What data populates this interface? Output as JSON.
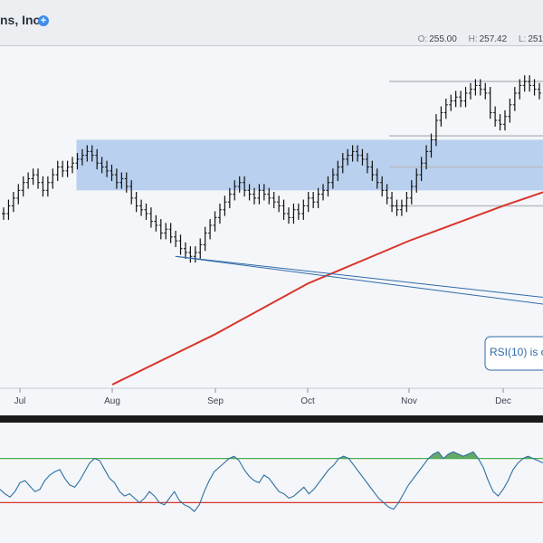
{
  "header": {
    "title": "ns, Inc.",
    "add_icon": "plus-circle-icon",
    "ohlc": {
      "o_label": "O:",
      "o_value": "255.00",
      "h_label": "H:",
      "h_value": "257.42",
      "l_label": "L:",
      "l_value": "251"
    }
  },
  "annotation": {
    "text": "RSI(10) is o"
  },
  "colors": {
    "bars": "#111111",
    "ma": "#d9342b",
    "zone": "#b9d0ee",
    "rsi_line": "#2f6f9f",
    "rsi_fill": "#4c9a50",
    "upper": "#4caf50",
    "lower": "#d9342b",
    "trend": "#2f6aa8"
  },
  "chart_data": [
    {
      "type": "ohlc",
      "x_ticks": [
        "Jul",
        "Aug",
        "Sep",
        "Oct",
        "Nov",
        "Dec"
      ],
      "ylim": [
        180,
        265
      ],
      "grid": false,
      "zone": {
        "from": "Jul 20",
        "to": "Dec 31",
        "low": 230,
        "high": 243
      },
      "levels": [
        258,
        244,
        236,
        226
      ],
      "ma_series": {
        "x": [
          "Aug 1",
          "Sep 1",
          "Oct 1",
          "Nov 1",
          "Dec 1",
          "Dec 31"
        ],
        "values": [
          180,
          193,
          206,
          217,
          226,
          234
        ]
      },
      "trendlines": [
        {
          "from": [
            "Aug 20",
            213
          ],
          "to": [
            "Dec 31",
            199
          ]
        },
        {
          "from": [
            "Aug 20",
            213
          ],
          "to": [
            "Dec 31",
            201
          ]
        }
      ],
      "closes": [
        224,
        226,
        228,
        230,
        232,
        233,
        234,
        232,
        230,
        232,
        234,
        236,
        235,
        236,
        237,
        238,
        239,
        240,
        239,
        237,
        236,
        235,
        234,
        232,
        233,
        231,
        228,
        226,
        225,
        224,
        222,
        221,
        219,
        220,
        218,
        217,
        215,
        214,
        213,
        214,
        216,
        219,
        221,
        223,
        225,
        227,
        229,
        231,
        232,
        230,
        229,
        228,
        230,
        229,
        228,
        227,
        226,
        224,
        223,
        225,
        224,
        226,
        228,
        227,
        229,
        230,
        232,
        234,
        236,
        238,
        239,
        240,
        239,
        238,
        236,
        234,
        232,
        230,
        228,
        226,
        225,
        226,
        228,
        231,
        234,
        237,
        240,
        243,
        248,
        250,
        252,
        253,
        254,
        253,
        255,
        256,
        257,
        256,
        255,
        250,
        248,
        247,
        249,
        252,
        255,
        257,
        258,
        257,
        256,
        255
      ]
    },
    {
      "type": "line",
      "name": "",
      "ylim": [
        0,
        100
      ],
      "levels": [
        70,
        30
      ],
      "values": [
        42,
        38,
        35,
        40,
        48,
        50,
        45,
        40,
        42,
        50,
        55,
        58,
        60,
        52,
        46,
        44,
        50,
        58,
        66,
        70,
        68,
        60,
        52,
        48,
        40,
        36,
        38,
        34,
        30,
        34,
        40,
        36,
        30,
        28,
        34,
        40,
        32,
        28,
        26,
        22,
        28,
        40,
        50,
        58,
        62,
        66,
        70,
        72,
        68,
        60,
        54,
        50,
        48,
        55,
        52,
        46,
        40,
        38,
        34,
        36,
        40,
        44,
        38,
        42,
        48,
        54,
        60,
        64,
        70,
        72,
        70,
        64,
        58,
        52,
        46,
        40,
        34,
        30,
        26,
        24,
        30,
        38,
        46,
        52,
        58,
        64,
        70,
        74,
        76,
        70,
        74,
        76,
        74,
        72,
        74,
        76,
        70,
        62,
        50,
        40,
        36,
        42,
        50,
        60,
        66,
        70,
        72,
        70,
        68,
        66
      ]
    }
  ]
}
